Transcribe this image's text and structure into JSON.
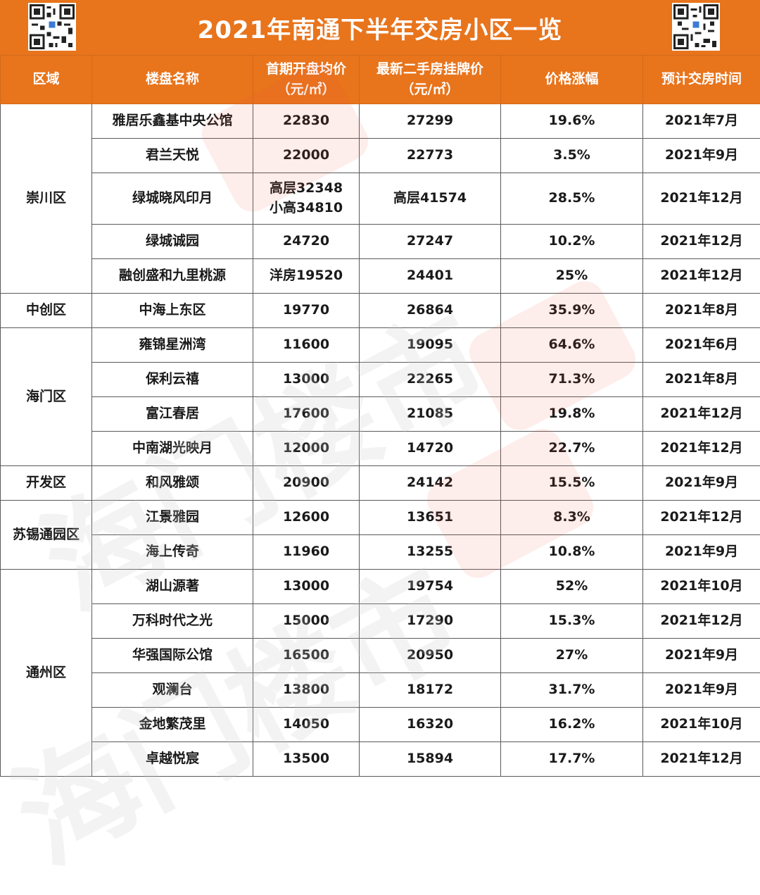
{
  "title": "2021年南通下半年交房小区一览",
  "headers": {
    "district": "区域",
    "name": "楼盘名称",
    "initial_price": "首期开盘均价",
    "initial_price_unit": "（元/㎡）",
    "resale_price": "最新二手房挂牌价",
    "resale_price_unit": "（元/㎡）",
    "increase": "价格涨幅",
    "delivery": "预计交房时间"
  },
  "watermark": "海门楼市",
  "colors": {
    "header_bg": "#e8741c",
    "header_text": "#ffffff",
    "border": "#5a5a5a"
  },
  "districts": [
    {
      "name": "崇川区",
      "rows": [
        {
          "name": "雅居乐鑫基中央公馆",
          "initial": "22830",
          "resale": "27299",
          "increase": "19.6%",
          "delivery": "2021年7月"
        },
        {
          "name": "君兰天悦",
          "initial": "22000",
          "resale": "22773",
          "increase": "3.5%",
          "delivery": "2021年9月"
        },
        {
          "name": "绿城晓风印月",
          "initial": "高层32348",
          "initial2": "小高34810",
          "resale": "高层41574",
          "increase": "28.5%",
          "delivery": "2021年12月"
        },
        {
          "name": "绿城诚园",
          "initial": "24720",
          "resale": "27247",
          "increase": "10.2%",
          "delivery": "2021年12月"
        },
        {
          "name": "融创盛和九里桃源",
          "initial": "洋房19520",
          "resale": "24401",
          "increase": "25%",
          "delivery": "2021年12月"
        }
      ]
    },
    {
      "name": "中创区",
      "rows": [
        {
          "name": "中海上东区",
          "initial": "19770",
          "resale": "26864",
          "increase": "35.9%",
          "delivery": "2021年8月"
        }
      ]
    },
    {
      "name": "海门区",
      "rows": [
        {
          "name": "雍锦星洲湾",
          "initial": "11600",
          "resale": "19095",
          "increase": "64.6%",
          "delivery": "2021年6月"
        },
        {
          "name": "保利云禧",
          "initial": "13000",
          "resale": "22265",
          "increase": "71.3%",
          "delivery": "2021年8月"
        },
        {
          "name": "富江春居",
          "initial": "17600",
          "resale": "21085",
          "increase": "19.8%",
          "delivery": "2021年12月"
        },
        {
          "name": "中南湖光映月",
          "initial": "12000",
          "resale": "14720",
          "increase": "22.7%",
          "delivery": "2021年12月"
        }
      ]
    },
    {
      "name": "开发区",
      "rows": [
        {
          "name": "和风雅颂",
          "initial": "20900",
          "resale": "24142",
          "increase": "15.5%",
          "delivery": "2021年9月"
        }
      ]
    },
    {
      "name": "苏锡通园区",
      "rows": [
        {
          "name": "江景雅园",
          "initial": "12600",
          "resale": "13651",
          "increase": "8.3%",
          "delivery": "2021年12月"
        },
        {
          "name": "海上传奇",
          "initial": "11960",
          "resale": "13255",
          "increase": "10.8%",
          "delivery": "2021年9月"
        }
      ]
    },
    {
      "name": "通州区",
      "rows": [
        {
          "name": "湖山源著",
          "initial": "13000",
          "resale": "19754",
          "increase": "52%",
          "delivery": "2021年10月"
        },
        {
          "name": "万科时代之光",
          "initial": "15000",
          "resale": "17290",
          "increase": "15.3%",
          "delivery": "2021年12月"
        },
        {
          "name": "华强国际公馆",
          "initial": "16500",
          "resale": "20950",
          "increase": "27%",
          "delivery": "2021年9月"
        },
        {
          "name": "观澜台",
          "initial": "13800",
          "resale": "18172",
          "increase": "31.7%",
          "delivery": "2021年9月"
        },
        {
          "name": "金地繁茂里",
          "initial": "14050",
          "resale": "16320",
          "increase": "16.2%",
          "delivery": "2021年10月"
        },
        {
          "name": "卓越悦宸",
          "initial": "13500",
          "resale": "15894",
          "increase": "17.7%",
          "delivery": "2021年12月"
        }
      ]
    }
  ]
}
